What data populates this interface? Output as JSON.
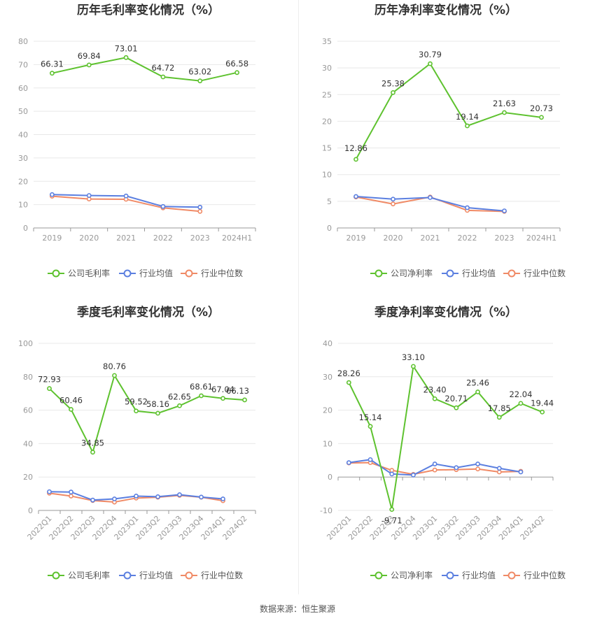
{
  "colors": {
    "company": "#5ec22f",
    "industry_avg": "#5b7fe0",
    "industry_median": "#f08a66"
  },
  "source": "数据来源：恒生聚源",
  "chart_data": [
    {
      "type": "line",
      "title": "历年毛利率变化情况（%）",
      "categories": [
        "2019",
        "2020",
        "2021",
        "2022",
        "2023",
        "2024H1"
      ],
      "ylim": [
        0,
        80
      ],
      "yticks": [
        0,
        10,
        20,
        30,
        40,
        50,
        60,
        70,
        80
      ],
      "rotate_xlabels": false,
      "series": [
        {
          "name": "公司毛利率",
          "values": [
            66.31,
            69.84,
            73.01,
            64.72,
            63.02,
            66.58
          ],
          "labels": [
            "66.31",
            "69.84",
            "73.01",
            "64.72",
            "63.02",
            "66.58"
          ]
        },
        {
          "name": "行业均值",
          "values": [
            14.3,
            13.9,
            13.7,
            9.2,
            8.9,
            null
          ]
        },
        {
          "name": "行业中位数",
          "values": [
            13.6,
            12.4,
            12.3,
            8.6,
            7.1,
            null
          ]
        }
      ],
      "grid": true,
      "legend": "bottom"
    },
    {
      "type": "line",
      "title": "历年净利率变化情况（%）",
      "categories": [
        "2019",
        "2020",
        "2021",
        "2022",
        "2023",
        "2024H1"
      ],
      "ylim": [
        0,
        35
      ],
      "yticks": [
        0,
        5,
        10,
        15,
        20,
        25,
        30,
        35
      ],
      "rotate_xlabels": false,
      "series": [
        {
          "name": "公司净利率",
          "values": [
            12.86,
            25.38,
            30.79,
            19.14,
            21.63,
            20.73
          ],
          "labels": [
            "12.86",
            "25.38",
            "30.79",
            "19.14",
            "21.63",
            "20.73"
          ]
        },
        {
          "name": "行业均值",
          "values": [
            5.9,
            5.4,
            5.7,
            3.8,
            3.2,
            null
          ]
        },
        {
          "name": "行业中位数",
          "values": [
            5.8,
            4.5,
            5.8,
            3.3,
            3.1,
            null
          ]
        }
      ],
      "grid": true,
      "legend": "bottom"
    },
    {
      "type": "line",
      "title": "季度毛利率变化情况（%）",
      "categories": [
        "2022Q1",
        "2022Q2",
        "2022Q3",
        "2022Q4",
        "2023Q1",
        "2023Q2",
        "2023Q3",
        "2023Q4",
        "2024Q1",
        "2024Q2"
      ],
      "ylim": [
        0,
        100
      ],
      "yticks": [
        0,
        20,
        40,
        60,
        80,
        100
      ],
      "rotate_xlabels": true,
      "series": [
        {
          "name": "公司毛利率",
          "values": [
            72.93,
            60.46,
            34.85,
            80.76,
            59.52,
            58.16,
            62.65,
            68.61,
            67.04,
            66.13
          ],
          "labels": [
            "72.93",
            "60.46",
            "34.85",
            "80.76",
            "59.52",
            "58.16",
            "62.65",
            "68.61",
            "67.04",
            "66.13"
          ]
        },
        {
          "name": "行业均值",
          "values": [
            11.2,
            11.0,
            6.2,
            6.9,
            8.6,
            8.2,
            9.4,
            8.0,
            6.9,
            null
          ]
        },
        {
          "name": "行业中位数",
          "values": [
            10.3,
            8.6,
            5.9,
            5.0,
            7.4,
            7.9,
            9.0,
            7.9,
            5.8,
            null
          ]
        }
      ],
      "grid": true,
      "legend": "bottom"
    },
    {
      "type": "line",
      "title": "季度净利率变化情况（%）",
      "categories": [
        "2022Q1",
        "2022Q2",
        "2022Q3",
        "2022Q4",
        "2023Q1",
        "2023Q2",
        "2023Q3",
        "2023Q4",
        "2024Q1",
        "2024Q2"
      ],
      "ylim": [
        -10,
        40
      ],
      "yticks": [
        -10,
        0,
        10,
        20,
        30,
        40
      ],
      "rotate_xlabels": true,
      "series": [
        {
          "name": "公司净利率",
          "values": [
            28.26,
            15.14,
            -9.71,
            33.1,
            23.4,
            20.71,
            25.46,
            17.85,
            22.04,
            19.44
          ],
          "labels": [
            "28.26",
            "15.14",
            "-9.71",
            "33.10",
            "23.40",
            "20.71",
            "25.46",
            "17.85",
            "22.04",
            "19.44"
          ]
        },
        {
          "name": "行业均值",
          "values": [
            4.3,
            5.2,
            0.9,
            0.6,
            3.9,
            2.8,
            3.9,
            2.6,
            1.5,
            null
          ]
        },
        {
          "name": "行业中位数",
          "values": [
            4.2,
            4.3,
            2.0,
            0.8,
            2.1,
            2.2,
            2.4,
            1.5,
            1.7,
            null
          ]
        }
      ],
      "grid": true,
      "legend": "bottom"
    }
  ]
}
